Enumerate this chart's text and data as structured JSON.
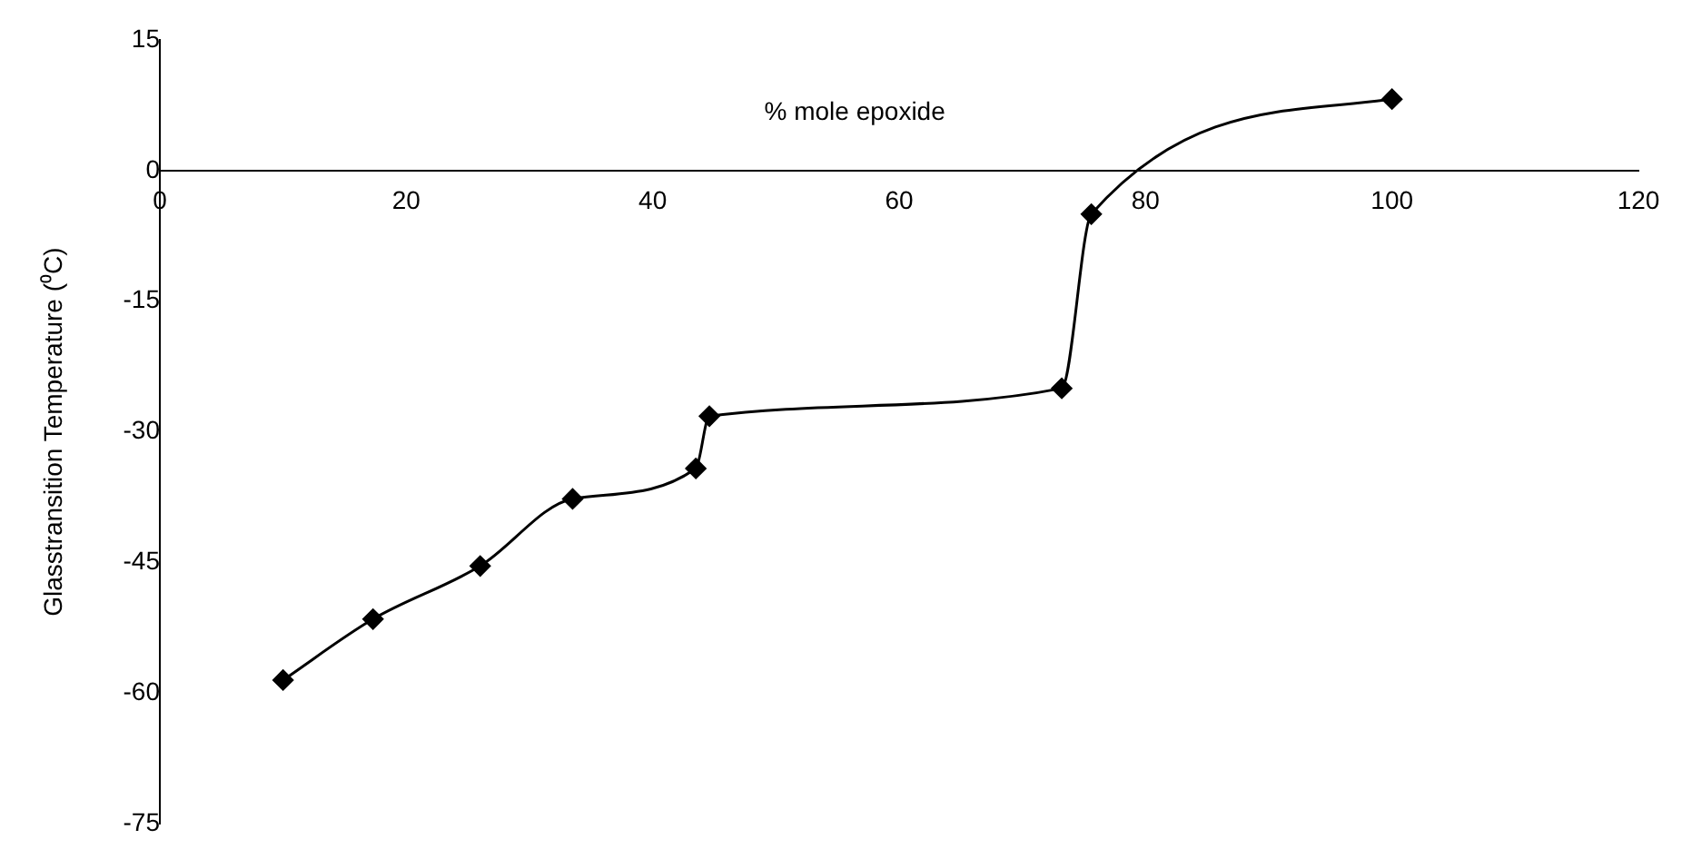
{
  "chart_data": {
    "type": "line",
    "xlabel": "% mole epoxide",
    "ylabel": "Glasstransition Temperature (⁰C)",
    "x": [
      10,
      17.3,
      26,
      33.5,
      43.5,
      44.6,
      73.2,
      75.6,
      100
    ],
    "series": [
      {
        "color": "#000000",
        "values": [
          -58.5,
          -51.5,
          -45.4,
          -37.7,
          -34.2,
          -28.2,
          -25,
          -5,
          8.2
        ]
      }
    ],
    "xlim": [
      0,
      120
    ],
    "xticks": [
      0,
      20,
      40,
      60,
      80,
      100,
      120
    ],
    "ylim": [
      -75,
      15
    ],
    "yticks": [
      -75,
      -60,
      -45,
      -30,
      -15,
      0,
      15
    ],
    "grid": false,
    "legend": false,
    "marker": "diamond",
    "line_style": "solid"
  }
}
